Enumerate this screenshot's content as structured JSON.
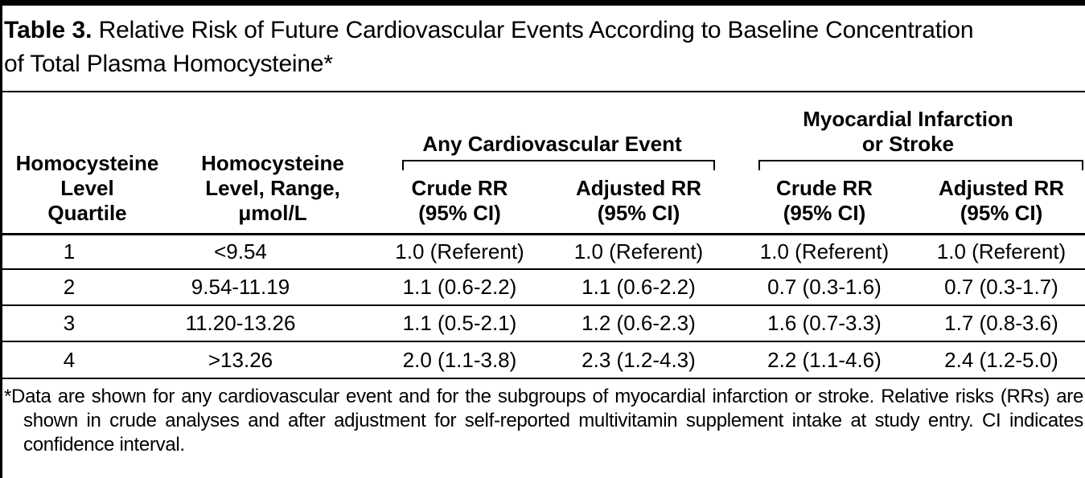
{
  "title": {
    "label": "Table 3.",
    "line1": "Relative Risk of Future Cardiovascular Events According to Baseline Concentration",
    "line2": "of Total Plasma Homocysteine*"
  },
  "table": {
    "stub_headers": {
      "quartile": "Homocysteine\nLevel\nQuartile",
      "range": "Homocysteine\nLevel, Range,\nμmol/L"
    },
    "groups": {
      "any_cv_event": {
        "label": "Any Cardiovascular Event",
        "crude": "Crude RR\n(95% CI)",
        "adjusted": "Adjusted RR\n(95% CI)"
      },
      "mi_or_stroke": {
        "label": "Myocardial Infarction\nor Stroke",
        "crude": "Crude RR\n(95% CI)",
        "adjusted": "Adjusted RR\n(95% CI)"
      }
    },
    "rows": [
      [
        "1",
        "<9.54",
        "1.0 (Referent)",
        "1.0 (Referent)",
        "1.0 (Referent)",
        "1.0 (Referent)"
      ],
      [
        "2",
        "9.54-11.19",
        "1.1 (0.6-2.2)",
        "1.1 (0.6-2.2)",
        "0.7 (0.3-1.6)",
        "0.7 (0.3-1.7)"
      ],
      [
        "3",
        "11.20-13.26",
        "1.1 (0.5-2.1)",
        "1.2 (0.6-2.3)",
        "1.6 (0.7-3.3)",
        "1.7 (0.8-3.6)"
      ],
      [
        "4",
        ">13.26",
        "2.0 (1.1-3.8)",
        "2.3 (1.2-4.3)",
        "2.2 (1.1-4.6)",
        "2.4 (1.2-5.0)"
      ]
    ]
  },
  "footnote": "*Data are shown for any cardiovascular event and for the subgroups of myocardial infarction or stroke. Relative risks (RRs) are shown in crude analyses and after adjustment for self-reported multivitamin supplement intake at study entry. CI indicates confidence interval.",
  "colors": {
    "text": "#000000",
    "background": "#ffffff",
    "rule": "#000000"
  }
}
